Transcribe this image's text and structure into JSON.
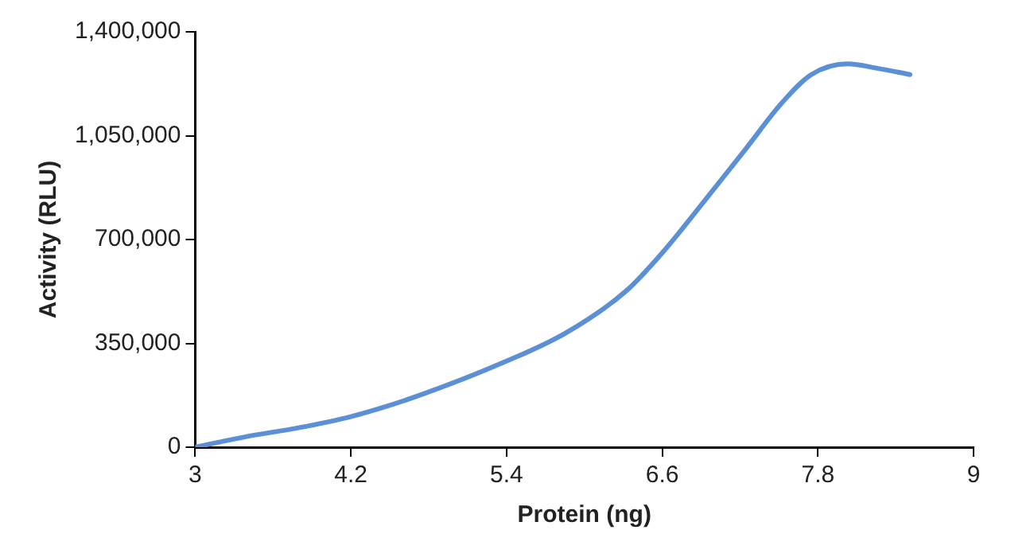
{
  "chart_data": {
    "type": "line",
    "xlabel": "Protein (ng)",
    "ylabel": "Activity (RLU)",
    "x": [
      3,
      3.42,
      3.78,
      4.2,
      4.71,
      5.4,
      5.86,
      6.32,
      6.6,
      6.92,
      7.25,
      7.52,
      7.75,
      8.03,
      8.26,
      8.51
    ],
    "series": [
      {
        "color": "#5b8fd6",
        "values": [
          0,
          38000,
          64000,
          103000,
          172000,
          290000,
          386000,
          526000,
          655000,
          827000,
          1009000,
          1159000,
          1256000,
          1292000,
          1277000,
          1256000
        ]
      }
    ],
    "xlim": [
      3,
      9
    ],
    "xticks": [
      3,
      4.2,
      5.4,
      6.6,
      7.8,
      9
    ],
    "ylim": [
      0,
      1400000
    ],
    "yticks": [
      {
        "value": 0,
        "label": "0"
      },
      {
        "value": 350000,
        "label": "350,000"
      },
      {
        "value": 700000,
        "label": "700,000"
      },
      {
        "value": 1050000,
        "label": "1,050,000"
      },
      {
        "value": 1400000,
        "label": "1,400,000"
      }
    ],
    "grid": false,
    "legend": false,
    "marker": "none",
    "line_style": "solid"
  }
}
